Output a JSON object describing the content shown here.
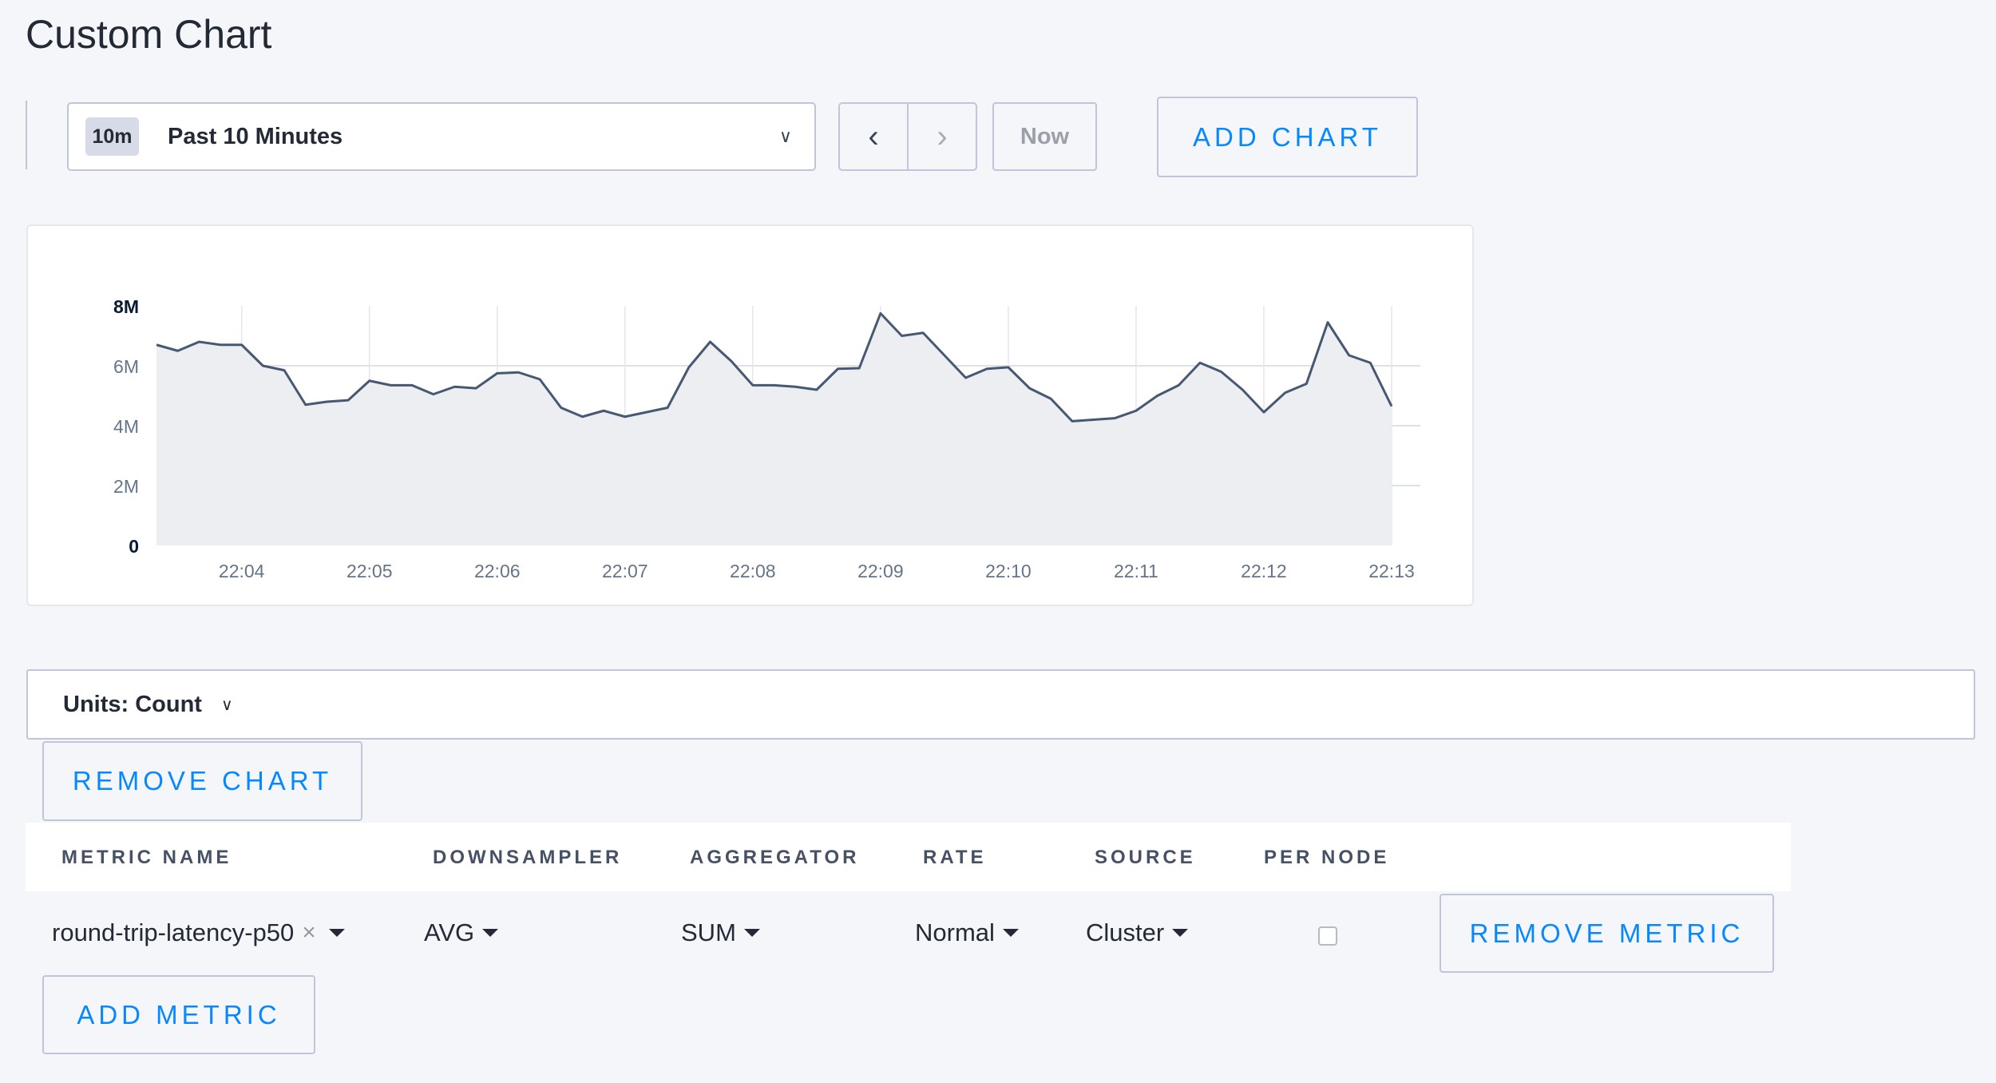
{
  "page": {
    "title": "Custom Chart"
  },
  "timeframe": {
    "badge": "10m",
    "label": "Past 10 Minutes",
    "now_label": "Now"
  },
  "toolbar": {
    "add_chart": "ADD CHART",
    "remove_chart": "REMOVE CHART",
    "add_metric": "ADD METRIC",
    "remove_metric": "REMOVE METRIC"
  },
  "units": {
    "label": "Units: Count"
  },
  "table": {
    "headers": [
      "METRIC NAME",
      "DOWNSAMPLER",
      "AGGREGATOR",
      "RATE",
      "SOURCE",
      "PER NODE"
    ],
    "row": {
      "metric": "round-trip-latency-p50",
      "downsampler": "AVG",
      "aggregator": "SUM",
      "rate": "Normal",
      "source": "Cluster",
      "per_node": false
    }
  },
  "colors": {
    "accent": "#0788ff",
    "line": "#475872",
    "fill": "#eceef2"
  },
  "chart_data": {
    "type": "area",
    "x_start": "22:03:20",
    "x_step_seconds": 10,
    "x_ticks": [
      "22:04",
      "22:05",
      "22:06",
      "22:07",
      "22:08",
      "22:09",
      "22:10",
      "22:11",
      "22:12",
      "22:13"
    ],
    "y_ticks": [
      "0",
      "2M",
      "4M",
      "6M",
      "8M"
    ],
    "ylim": [
      0,
      8000000
    ],
    "grid": true,
    "values": [
      6.7,
      6.5,
      6.8,
      6.7,
      6.7,
      6.0,
      5.85,
      4.7,
      4.8,
      4.85,
      5.5,
      5.35,
      5.35,
      5.05,
      5.3,
      5.25,
      5.75,
      5.78,
      5.55,
      4.6,
      4.3,
      4.5,
      4.3,
      4.45,
      4.6,
      5.95,
      6.8,
      6.15,
      5.35,
      5.35,
      5.3,
      5.2,
      5.9,
      5.92,
      7.75,
      7.0,
      7.1,
      6.35,
      5.6,
      5.9,
      5.95,
      5.25,
      4.9,
      4.15,
      4.2,
      4.25,
      4.5,
      5.0,
      5.35,
      6.1,
      5.8,
      5.2,
      4.45,
      5.1,
      5.4,
      7.45,
      6.35,
      6.1,
      4.65
    ],
    "values_unit": "M"
  }
}
